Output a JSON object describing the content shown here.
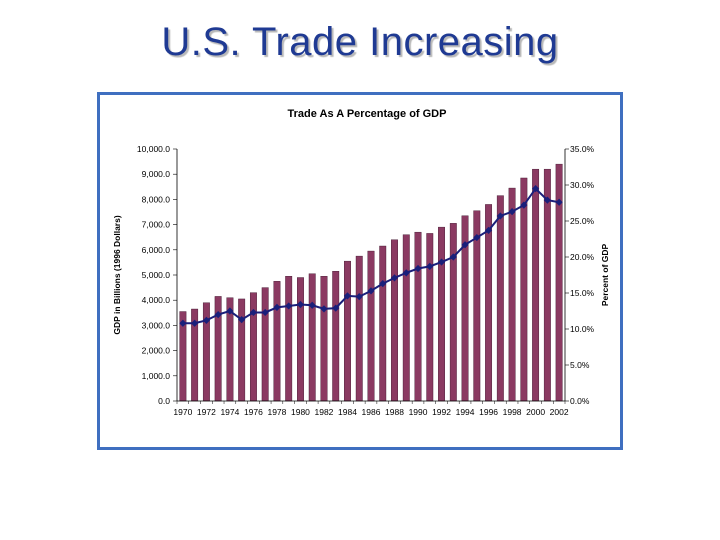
{
  "slide": {
    "title": "U.S. Trade Increasing"
  },
  "chart_data": {
    "type": "bar",
    "title": "Trade As A Percentage of GDP",
    "ylabel": "GDP in Billions (1996 Dollars)",
    "y2label": "Percent of GDP",
    "ylim": [
      0,
      10000
    ],
    "y2lim": [
      0,
      35
    ],
    "y_ticks": [
      "0.0",
      "1,000.0",
      "2,000.0",
      "3,000.0",
      "4,000.0",
      "5,000.0",
      "6,000.0",
      "7,000.0",
      "8,000.0",
      "9,000.0",
      "10,000.0"
    ],
    "y2_ticks": [
      "0.0%",
      "5.0%",
      "10.0%",
      "15.0%",
      "20.0%",
      "25.0%",
      "30.0%",
      "35.0%"
    ],
    "x_tick_labels": [
      "1970",
      "1972",
      "1974",
      "1976",
      "1978",
      "1980",
      "1982",
      "1984",
      "1986",
      "1988",
      "1990",
      "1992",
      "1994",
      "1996",
      "1998",
      "2000",
      "2002"
    ],
    "categories": [
      "1970",
      "1971",
      "1972",
      "1973",
      "1974",
      "1975",
      "1976",
      "1977",
      "1978",
      "1979",
      "1980",
      "1981",
      "1982",
      "1983",
      "1984",
      "1985",
      "1986",
      "1987",
      "1988",
      "1989",
      "1990",
      "1991",
      "1992",
      "1993",
      "1994",
      "1995",
      "1996",
      "1997",
      "1998",
      "1999",
      "2000",
      "2001",
      "2002"
    ],
    "grid": false,
    "series": [
      {
        "type": "bar",
        "axis": "left",
        "color": "#8b3a62",
        "values": [
          3550,
          3650,
          3900,
          4150,
          4100,
          4050,
          4300,
          4500,
          4750,
          4950,
          4900,
          5050,
          4950,
          5150,
          5550,
          5750,
          5950,
          6150,
          6400,
          6600,
          6700,
          6650,
          6900,
          7050,
          7350,
          7550,
          7800,
          8150,
          8450,
          8850,
          9200,
          9200,
          9400
        ]
      },
      {
        "type": "line",
        "axis": "right",
        "color": "#1a1f7a",
        "values": [
          10.8,
          10.8,
          11.2,
          12.0,
          12.5,
          11.3,
          12.3,
          12.3,
          13.0,
          13.2,
          13.4,
          13.3,
          12.8,
          12.9,
          14.6,
          14.5,
          15.3,
          16.3,
          17.1,
          17.8,
          18.4,
          18.7,
          19.3,
          20.0,
          21.7,
          22.7,
          23.7,
          25.7,
          26.3,
          27.2,
          29.5,
          27.9,
          27.6
        ]
      }
    ]
  }
}
